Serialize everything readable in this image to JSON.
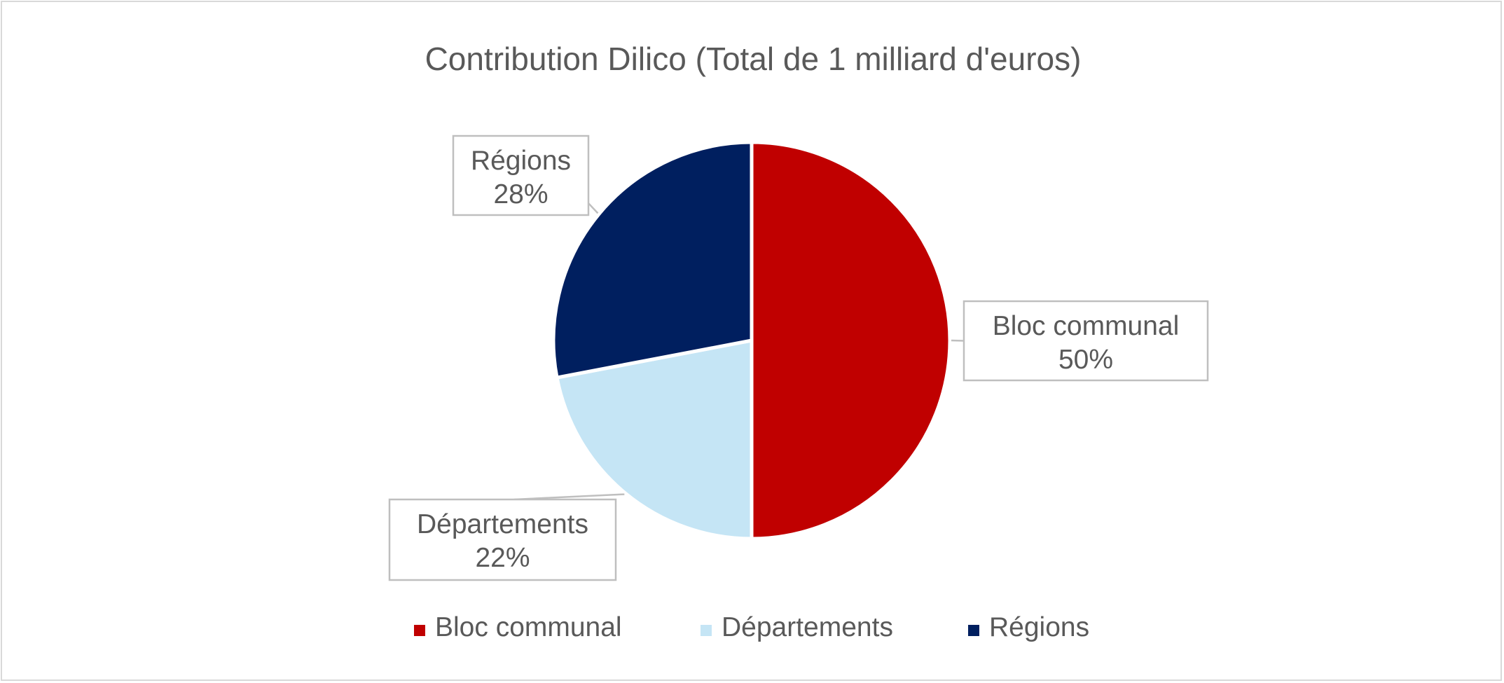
{
  "chart_data": {
    "type": "pie",
    "title": "Contribution Dilico (Total de 1 milliard d'euros)",
    "categories": [
      "Bloc communal",
      "Départements",
      "Régions"
    ],
    "values": [
      50,
      22,
      28
    ],
    "value_labels": [
      "50%",
      "22%",
      "28%"
    ],
    "colors": [
      "#c00000",
      "#c5e5f5",
      "#001f5f"
    ],
    "legend": "bottom"
  }
}
